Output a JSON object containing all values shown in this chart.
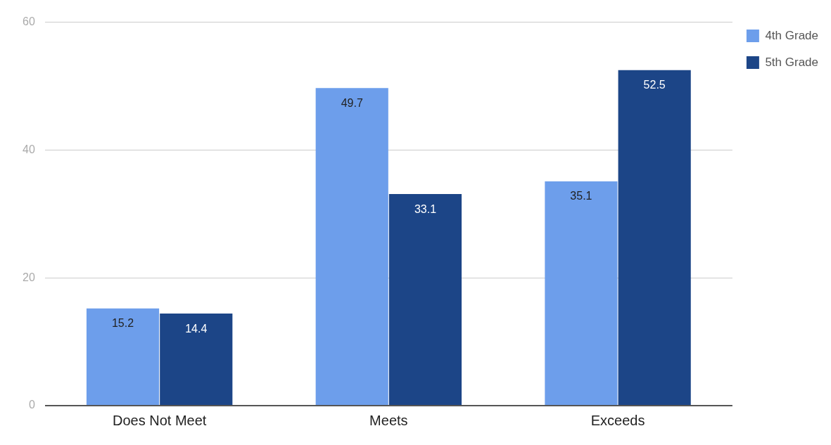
{
  "chart_data": {
    "type": "bar",
    "categories": [
      "Does Not Meet",
      "Meets",
      "Exceeds"
    ],
    "series": [
      {
        "name": "4th Grade",
        "color": "#6d9eeb",
        "values": [
          15.2,
          49.7,
          35.1
        ]
      },
      {
        "name": "5th Grade",
        "color": "#1c4587",
        "values": [
          14.4,
          33.1,
          52.5
        ]
      }
    ],
    "ylim": [
      0,
      60
    ],
    "yticks": [
      0,
      20,
      40,
      60
    ],
    "grid": "y",
    "legend": "top right",
    "data_labels": true
  }
}
